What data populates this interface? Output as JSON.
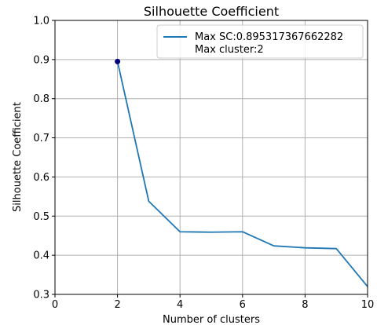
{
  "chart_data": {
    "type": "line",
    "title": "Silhouette Coefficient",
    "xlabel": "Number of clusters",
    "ylabel": "Silhouette Coefficient",
    "xlim": [
      0,
      10
    ],
    "ylim": [
      0.3,
      1.0
    ],
    "xticks": [
      0,
      2,
      4,
      6,
      8,
      10
    ],
    "yticks": [
      0.3,
      0.4,
      0.5,
      0.6,
      0.7,
      0.8,
      0.9,
      1.0
    ],
    "ytick_labels": [
      "0.3",
      "0.4",
      "0.5",
      "0.6",
      "0.7",
      "0.8",
      "0.9",
      "1.0"
    ],
    "grid": true,
    "legend_position": "top-right",
    "series": [
      {
        "name": "Max SC:0.895317367662282\nMax cluster:2",
        "legend_lines": [
          "Max SC:0.895317367662282",
          "Max cluster:2"
        ],
        "color": "#1f77b4",
        "x": [
          2,
          3,
          4,
          5,
          6,
          7,
          8,
          9,
          10
        ],
        "y": [
          0.895,
          0.538,
          0.46,
          0.459,
          0.46,
          0.424,
          0.419,
          0.417,
          0.32
        ]
      }
    ],
    "highlight_point": {
      "x": 2,
      "y": 0.895,
      "color": "#00007f"
    }
  }
}
